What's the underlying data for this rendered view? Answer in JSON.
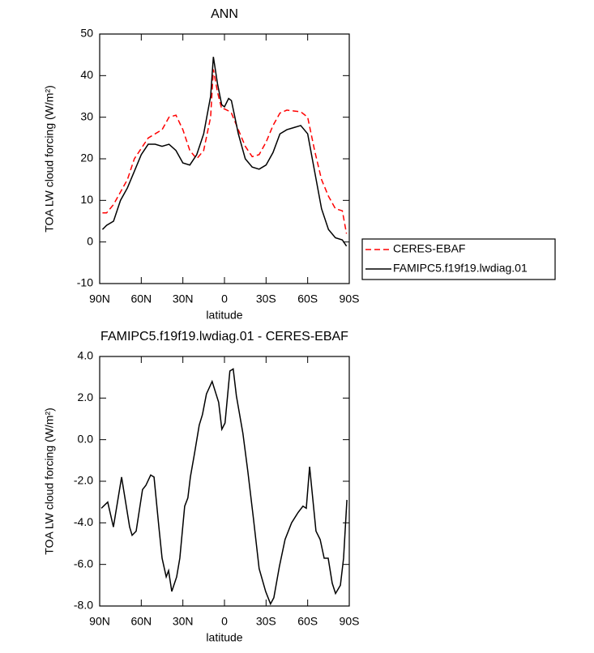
{
  "chart_data": [
    {
      "type": "line",
      "title": "ANN",
      "xlabel": "latitude",
      "ylabel": "TOA LW cloud forcing (W/m²)",
      "x": [
        88,
        85,
        80,
        75,
        70,
        65,
        60,
        55,
        50,
        45,
        40,
        35,
        30,
        25,
        20,
        15,
        10,
        8,
        5,
        2,
        0,
        -3,
        -5,
        -10,
        -15,
        -20,
        -25,
        -30,
        -35,
        -40,
        -45,
        -50,
        -55,
        -60,
        -65,
        -70,
        -75,
        -80,
        -85,
        -88
      ],
      "series": [
        {
          "name": "CERES-EBAF",
          "color": "#ff0000",
          "dash": true,
          "values": [
            7,
            7,
            9,
            12,
            15,
            20,
            22.5,
            25,
            26,
            27,
            30,
            30.5,
            27,
            22,
            20,
            22,
            30,
            41.5,
            36,
            32,
            32,
            31.5,
            31,
            27,
            23,
            20.5,
            21,
            24,
            28,
            31,
            31.7,
            31.5,
            31.3,
            30,
            22,
            15,
            11,
            8,
            7.5,
            2
          ]
        },
        {
          "name": "FAMIPC5.f19f19.lwdiag.01",
          "color": "#000000",
          "dash": false,
          "values": [
            3,
            4,
            5,
            10,
            13,
            17,
            21,
            23.5,
            23.5,
            23,
            23.5,
            22,
            19,
            18.5,
            21,
            26,
            35,
            44.5,
            38,
            33,
            32.5,
            34.5,
            34,
            26,
            20,
            18,
            17.5,
            18.5,
            21.5,
            26,
            27,
            27.5,
            28,
            26,
            17,
            8,
            3,
            1,
            0.5,
            -1
          ]
        }
      ],
      "xlim": [
        90,
        -90
      ],
      "xticks": [
        {
          "value": 90,
          "label": "90N"
        },
        {
          "value": 60,
          "label": "60N"
        },
        {
          "value": 30,
          "label": "30N"
        },
        0,
        {
          "value": -30,
          "label": "30S"
        },
        {
          "value": -60,
          "label": "60S"
        },
        {
          "value": -90,
          "label": "90S"
        }
      ],
      "ylim": [
        -10,
        50
      ],
      "yticks": [
        -10,
        0,
        10,
        20,
        30,
        40,
        50
      ],
      "legend": "right"
    },
    {
      "type": "line",
      "title": "FAMIPC5.f19f19.lwdiag.01 - CERES-EBAF",
      "xlabel": "latitude",
      "ylabel": "TOA LW cloud forcing (W/m²)",
      "x": [
        88.8,
        84.2,
        80.1,
        74.2,
        68.4,
        66.6,
        63.7,
        61.4,
        59.1,
        56.7,
        53.2,
        50.8,
        47.3,
        45,
        42,
        40.3,
        38,
        34.5,
        32.2,
        28.7,
        26.4,
        24.6,
        21.7,
        18.2,
        15.9,
        13,
        8.9,
        4.2,
        1.9,
        -0.4,
        -3.9,
        -6.3,
        -8.6,
        -13.3,
        -16.8,
        -20.9,
        -25,
        -29.7,
        -33.2,
        -35.6,
        -39.6,
        -43.7,
        -48.4,
        -53.1,
        -56.6,
        -59,
        -61.4,
        -66,
        -69,
        -71.9,
        -74.8,
        -77.7,
        -80.1,
        -83.6,
        -85.9,
        -88.3
      ],
      "series": [
        {
          "color": "#000000",
          "dash": false,
          "values": [
            -3.3,
            -3.0,
            -4.2,
            -1.8,
            -4.2,
            -4.6,
            -4.4,
            -3.4,
            -2.4,
            -2.2,
            -1.7,
            -1.8,
            -4.2,
            -5.7,
            -6.6,
            -6.3,
            -7.3,
            -6.6,
            -5.7,
            -3.2,
            -2.8,
            -1.8,
            -0.7,
            0.7,
            1.2,
            2.2,
            2.8,
            1.8,
            0.5,
            0.8,
            3.3,
            3.4,
            2.1,
            0.3,
            -1.5,
            -3.8,
            -6.2,
            -7.3,
            -7.9,
            -7.6,
            -6.1,
            -4.8,
            -4.0,
            -3.5,
            -3.2,
            -3.3,
            -1.3,
            -4.4,
            -4.8,
            -5.7,
            -5.7,
            -6.9,
            -7.4,
            -7.0,
            -5.7,
            -2.9
          ]
        }
      ],
      "xlim": [
        90,
        -90
      ],
      "xticks": [
        {
          "value": 90,
          "label": "90N"
        },
        {
          "value": 60,
          "label": "60N"
        },
        {
          "value": 30,
          "label": "30N"
        },
        0,
        {
          "value": -30,
          "label": "30S"
        },
        {
          "value": -60,
          "label": "60S"
        },
        {
          "value": -90,
          "label": "90S"
        }
      ],
      "ylim": [
        -8,
        4
      ],
      "yticks": [
        {
          "value": -8,
          "label": "-8.0"
        },
        {
          "value": -6,
          "label": "-6.0"
        },
        {
          "value": -4,
          "label": "-4.0"
        },
        {
          "value": -2,
          "label": "-2.0"
        },
        {
          "value": 0,
          "label": "0.0"
        },
        {
          "value": 2,
          "label": "2.0"
        },
        {
          "value": 4,
          "label": "4.0"
        }
      ]
    }
  ]
}
